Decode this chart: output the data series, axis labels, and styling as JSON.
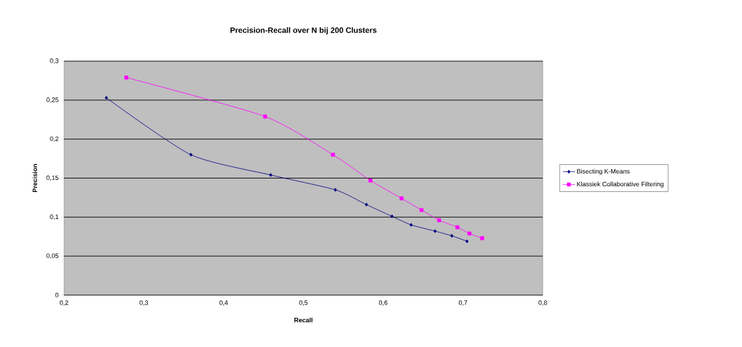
{
  "chart_data": {
    "type": "line",
    "title": "Precision-Recall over N bij 200 Clusters",
    "xlabel": "Recall",
    "ylabel": "Precision",
    "series": [
      {
        "name": "Bisecting K-Means",
        "color": "#000080",
        "marker": "diamond",
        "x": [
          0.253,
          0.359,
          0.459,
          0.54,
          0.579,
          0.611,
          0.635,
          0.665,
          0.686,
          0.705
        ],
        "values": [
          0.253,
          0.18,
          0.154,
          0.135,
          0.116,
          0.101,
          0.09,
          0.082,
          0.076,
          0.069
        ]
      },
      {
        "name": "Klassiek Collaborative Filtering",
        "color": "#ff00ff",
        "marker": "square",
        "x": [
          0.278,
          0.452,
          0.537,
          0.584,
          0.623,
          0.648,
          0.67,
          0.693,
          0.708,
          0.724
        ],
        "values": [
          0.279,
          0.229,
          0.18,
          0.147,
          0.124,
          0.109,
          0.096,
          0.087,
          0.079,
          0.073
        ]
      }
    ],
    "xlim": [
      0.2,
      0.8
    ],
    "ylim": [
      0,
      0.3
    ],
    "xticks": [
      {
        "value": 0.2,
        "label": "0,2"
      },
      {
        "value": 0.3,
        "label": "0,3"
      },
      {
        "value": 0.4,
        "label": "0,4"
      },
      {
        "value": 0.5,
        "label": "0,5"
      },
      {
        "value": 0.6,
        "label": "0,6"
      },
      {
        "value": 0.7,
        "label": "0,7"
      },
      {
        "value": 0.8,
        "label": "0,8"
      }
    ],
    "yticks": [
      0,
      {
        "value": 0.05,
        "label": "0,05"
      },
      {
        "value": 0.1,
        "label": "0,1"
      },
      {
        "value": 0.15,
        "label": "0,15"
      },
      {
        "value": 0.2,
        "label": "0,2"
      },
      {
        "value": 0.25,
        "label": "0,25"
      },
      {
        "value": 0.3,
        "label": "0,3"
      }
    ],
    "grid": "y",
    "legend": "right"
  }
}
